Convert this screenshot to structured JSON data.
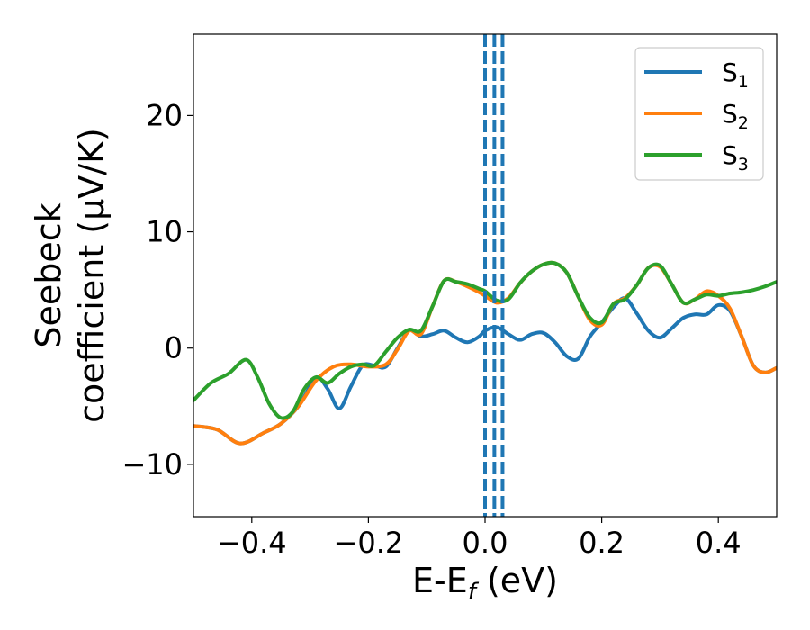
{
  "chart_data": {
    "type": "line",
    "title": "",
    "xlabel": {
      "base": "E-E",
      "sub": "f",
      "unit": " (eV)"
    },
    "ylabel": {
      "line1": "Seebeck",
      "line2": "coefficient  (μV/K)"
    },
    "xlim": [
      -0.5,
      0.5
    ],
    "ylim": [
      -14.5,
      27.0
    ],
    "xticks": [
      -0.4,
      -0.2,
      0.0,
      0.2,
      0.4
    ],
    "xtick_labels": [
      "−0.4",
      "−0.2",
      "0.0",
      "0.2",
      "0.4"
    ],
    "yticks": [
      -10,
      0,
      10,
      20
    ],
    "ytick_labels": [
      "−10",
      "0",
      "10",
      "20"
    ],
    "grid": false,
    "legend_position": "top-right",
    "series": [
      {
        "name": "S",
        "sub": "1",
        "color": "#1f77b4",
        "x": [
          -0.5,
          -0.46,
          -0.42,
          -0.38,
          -0.35,
          -0.32,
          -0.29,
          -0.27,
          -0.25,
          -0.23,
          -0.21,
          -0.19,
          -0.17,
          -0.15,
          -0.13,
          -0.11,
          -0.09,
          -0.07,
          -0.05,
          -0.03,
          -0.01,
          0.0,
          0.02,
          0.04,
          0.06,
          0.08,
          0.1,
          0.12,
          0.14,
          0.16,
          0.18,
          0.2,
          0.22,
          0.24,
          0.26,
          0.28,
          0.3,
          0.32,
          0.34,
          0.36,
          0.38,
          0.4,
          0.42,
          0.44,
          0.46,
          0.48,
          0.5
        ],
        "y": [
          -6.7,
          -7.0,
          -8.2,
          -7.3,
          -6.5,
          -5.0,
          -2.6,
          -3.5,
          -5.2,
          -3.3,
          -1.5,
          -1.5,
          -1.6,
          0.0,
          1.5,
          1.0,
          1.2,
          1.5,
          0.9,
          0.5,
          1.0,
          1.5,
          1.8,
          1.2,
          0.7,
          1.2,
          1.3,
          0.5,
          -0.7,
          -0.9,
          1.0,
          2.2,
          3.5,
          4.3,
          3.0,
          1.5,
          0.9,
          1.7,
          2.6,
          2.9,
          2.9,
          3.7,
          3.2,
          1.0,
          -1.5,
          -2.1,
          -1.7
        ]
      },
      {
        "name": "S",
        "sub": "2",
        "color": "#ff7f0e",
        "x": [
          -0.5,
          -0.46,
          -0.42,
          -0.38,
          -0.35,
          -0.32,
          -0.29,
          -0.26,
          -0.23,
          -0.2,
          -0.17,
          -0.15,
          -0.13,
          -0.11,
          -0.09,
          -0.07,
          -0.05,
          -0.03,
          -0.01,
          0.0,
          0.02,
          0.04,
          0.06,
          0.08,
          0.1,
          0.12,
          0.14,
          0.16,
          0.18,
          0.2,
          0.22,
          0.24,
          0.26,
          0.28,
          0.3,
          0.32,
          0.34,
          0.36,
          0.38,
          0.4,
          0.42,
          0.44,
          0.46,
          0.48,
          0.5
        ],
        "y": [
          -6.7,
          -7.0,
          -8.2,
          -7.3,
          -6.5,
          -5.0,
          -2.8,
          -1.6,
          -1.4,
          -1.6,
          -1.4,
          -0.1,
          1.5,
          1.2,
          3.6,
          5.8,
          5.7,
          5.3,
          4.8,
          4.5,
          3.9,
          4.3,
          5.6,
          6.6,
          7.2,
          7.3,
          6.5,
          4.4,
          2.4,
          2.0,
          3.8,
          4.3,
          5.4,
          6.9,
          7.0,
          5.5,
          3.9,
          4.2,
          4.9,
          4.5,
          3.4,
          1.0,
          -1.5,
          -2.1,
          -1.7
        ]
      },
      {
        "name": "S",
        "sub": "3",
        "color": "#2ca02c",
        "x": [
          -0.5,
          -0.47,
          -0.44,
          -0.41,
          -0.39,
          -0.37,
          -0.35,
          -0.33,
          -0.31,
          -0.29,
          -0.27,
          -0.25,
          -0.23,
          -0.21,
          -0.19,
          -0.17,
          -0.15,
          -0.13,
          -0.11,
          -0.09,
          -0.07,
          -0.05,
          -0.03,
          -0.01,
          0.0,
          0.02,
          0.04,
          0.06,
          0.08,
          0.1,
          0.12,
          0.14,
          0.16,
          0.18,
          0.2,
          0.22,
          0.24,
          0.26,
          0.28,
          0.3,
          0.32,
          0.34,
          0.36,
          0.38,
          0.4,
          0.42,
          0.44,
          0.46,
          0.48,
          0.5
        ],
        "y": [
          -4.5,
          -3.0,
          -2.2,
          -1.0,
          -2.5,
          -4.8,
          -6.0,
          -5.5,
          -3.5,
          -2.5,
          -3.0,
          -2.2,
          -1.6,
          -1.4,
          -1.5,
          -0.3,
          0.9,
          1.6,
          1.5,
          3.6,
          5.8,
          5.7,
          5.5,
          5.1,
          4.9,
          4.1,
          4.2,
          5.6,
          6.6,
          7.2,
          7.3,
          6.5,
          4.4,
          2.6,
          2.2,
          3.8,
          4.2,
          5.4,
          6.9,
          7.1,
          5.5,
          3.9,
          4.2,
          4.6,
          4.5,
          4.7,
          4.8,
          5.0,
          5.3,
          5.7
        ]
      }
    ],
    "vertical_lines": [
      {
        "x": 0.0,
        "color": "#000000",
        "style": "dashed"
      },
      {
        "x": 0.0,
        "color": "#1f77b4",
        "style": "dashed"
      },
      {
        "x": 0.016,
        "color": "#1f77b4",
        "style": "dashed"
      },
      {
        "x": 0.03,
        "color": "#1f77b4",
        "style": "dashed"
      }
    ]
  }
}
